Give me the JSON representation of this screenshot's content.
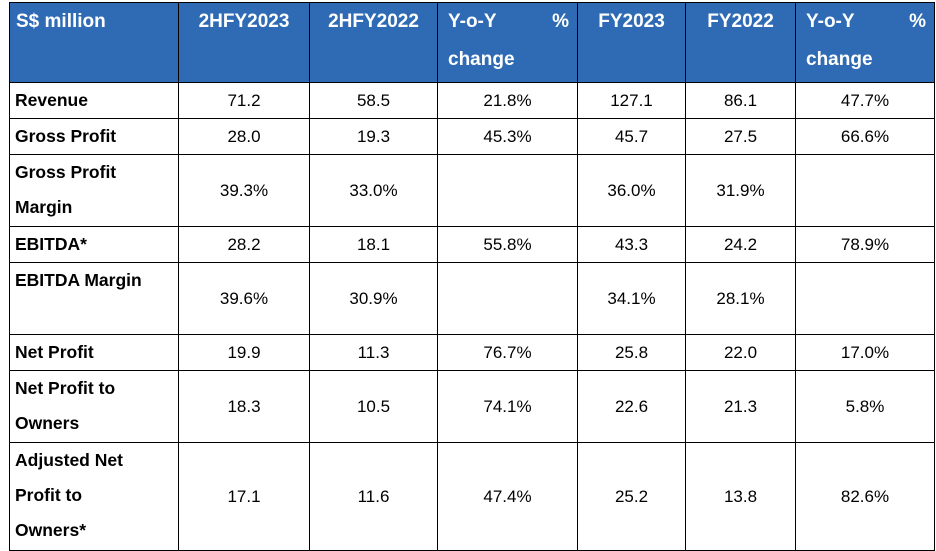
{
  "header": {
    "label": "S$ million",
    "col_2hfy2023": "2HFY2023",
    "col_2hfy2022": "2HFY2022",
    "col_yoy_h_a": "Y-o-Y",
    "col_yoy_h_b": "%",
    "col_yoy_h_c": "change",
    "col_fy2023": "FY2023",
    "col_fy2022": "FY2022",
    "col_yoy_fy_a": "Y-o-Y",
    "col_yoy_fy_b": "%",
    "col_yoy_fy_c": "change"
  },
  "rows": [
    {
      "label_lines": [
        "Revenue"
      ],
      "h2023": "71.2",
      "h2022": "58.5",
      "h_yoy": "21.8%",
      "fy2023": "127.1",
      "fy2022": "86.1",
      "fy_yoy": "47.7%"
    },
    {
      "label_lines": [
        "Gross Profit"
      ],
      "h2023": "28.0",
      "h2022": "19.3",
      "h_yoy": "45.3%",
      "fy2023": "45.7",
      "fy2022": "27.5",
      "fy_yoy": "66.6%"
    },
    {
      "label_lines": [
        "Gross Profit",
        "Margin"
      ],
      "h2023": "39.3%",
      "h2022": "33.0%",
      "h_yoy": "",
      "fy2023": "36.0%",
      "fy2022": "31.9%",
      "fy_yoy": ""
    },
    {
      "label_lines": [
        "EBITDA*"
      ],
      "h2023": "28.2",
      "h2022": "18.1",
      "h_yoy": "55.8%",
      "fy2023": "43.3",
      "fy2022": "24.2",
      "fy_yoy": "78.9%"
    },
    {
      "label_lines": [
        "EBITDA Margin"
      ],
      "h2023": "39.6%",
      "h2022": "30.9%",
      "h_yoy": "",
      "fy2023": "34.1%",
      "fy2022": "28.1%",
      "fy_yoy": ""
    },
    {
      "label_lines": [
        "Net Profit"
      ],
      "h2023": "19.9",
      "h2022": "11.3",
      "h_yoy": "76.7%",
      "fy2023": "25.8",
      "fy2022": "22.0",
      "fy_yoy": "17.0%"
    },
    {
      "label_lines": [
        "Net Profit to",
        "Owners"
      ],
      "h2023": "18.3",
      "h2022": "10.5",
      "h_yoy": "74.1%",
      "fy2023": "22.6",
      "fy2022": "21.3",
      "fy_yoy": "5.8%"
    },
    {
      "label_lines": [
        "Adjusted Net",
        "Profit to",
        "Owners*"
      ],
      "h2023": "17.1",
      "h2022": "11.6",
      "h_yoy": "47.4%",
      "fy2023": "25.2",
      "fy2022": "13.8",
      "fy_yoy": "82.6%"
    }
  ]
}
